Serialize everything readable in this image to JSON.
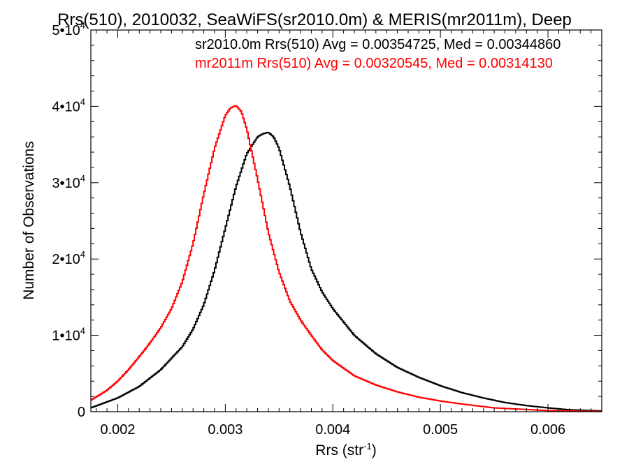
{
  "chart_data": {
    "type": "line",
    "title": "Rrs(510), 2010032, SeaWiFS(sr2010.0m) & MERIS(mr2011m), Deep",
    "xlabel": {
      "base": "Rrs (str",
      "sup": "-1",
      "close": ")"
    },
    "ylabel": "Number of Observations",
    "xlim": [
      0.00175,
      0.0065
    ],
    "ylim": [
      0,
      50000
    ],
    "x_ticks": [
      {
        "value": 0.002,
        "label": "0.002"
      },
      {
        "value": 0.003,
        "label": "0.003"
      },
      {
        "value": 0.004,
        "label": "0.004"
      },
      {
        "value": 0.005,
        "label": "0.005"
      },
      {
        "value": 0.006,
        "label": "0.006"
      }
    ],
    "y_ticks": [
      {
        "value": 0,
        "label": "0",
        "sup": ""
      },
      {
        "value": 10000,
        "label": "1•10",
        "sup": "4"
      },
      {
        "value": 20000,
        "label": "2•10",
        "sup": "4"
      },
      {
        "value": 30000,
        "label": "3•10",
        "sup": "4"
      },
      {
        "value": 40000,
        "label": "4•10",
        "sup": "4"
      },
      {
        "value": 50000,
        "label": "5•10",
        "sup": "4"
      }
    ],
    "series": [
      {
        "name": "sr2010.0m",
        "color": "#000000",
        "legend_text": "sr2010.0m Rrs(510) Avg = 0.00354725, Med = 0.00344860",
        "x": [
          0.00175,
          0.002,
          0.0022,
          0.0024,
          0.0026,
          0.0027,
          0.0028,
          0.0029,
          0.003,
          0.0031,
          0.0032,
          0.0033,
          0.00335,
          0.0034,
          0.00345,
          0.0035,
          0.0036,
          0.0037,
          0.0038,
          0.0039,
          0.004,
          0.0042,
          0.0044,
          0.0046,
          0.0048,
          0.005,
          0.0052,
          0.0054,
          0.0056,
          0.0058,
          0.006,
          0.0062,
          0.0065
        ],
        "y": [
          500,
          1800,
          3300,
          5500,
          8500,
          10800,
          14000,
          18500,
          24000,
          29500,
          33800,
          36000,
          36400,
          36600,
          36000,
          34500,
          29500,
          23500,
          18700,
          15700,
          13500,
          10000,
          7600,
          5800,
          4500,
          3400,
          2500,
          1800,
          1200,
          800,
          500,
          250,
          100
        ]
      },
      {
        "name": "mr2011m",
        "color": "#ff0000",
        "legend_text": "mr2011m Rrs(510) Avg = 0.00320545, Med = 0.00314130",
        "x": [
          0.00175,
          0.0019,
          0.002,
          0.0021,
          0.0022,
          0.0023,
          0.0024,
          0.0025,
          0.0026,
          0.0027,
          0.0028,
          0.0029,
          0.003,
          0.00305,
          0.0031,
          0.00315,
          0.0032,
          0.0033,
          0.0034,
          0.0035,
          0.0036,
          0.0037,
          0.0038,
          0.0039,
          0.004,
          0.0042,
          0.0044,
          0.0046,
          0.0048,
          0.005,
          0.0052,
          0.0055,
          0.006,
          0.0065
        ],
        "y": [
          1500,
          2800,
          4000,
          5500,
          7200,
          9000,
          11000,
          13500,
          17000,
          22000,
          28500,
          34500,
          38800,
          39800,
          40100,
          39300,
          37000,
          30500,
          23500,
          18300,
          14500,
          12000,
          10000,
          8100,
          6700,
          4700,
          3500,
          2600,
          1900,
          1400,
          1000,
          500,
          150,
          30
        ]
      }
    ]
  }
}
